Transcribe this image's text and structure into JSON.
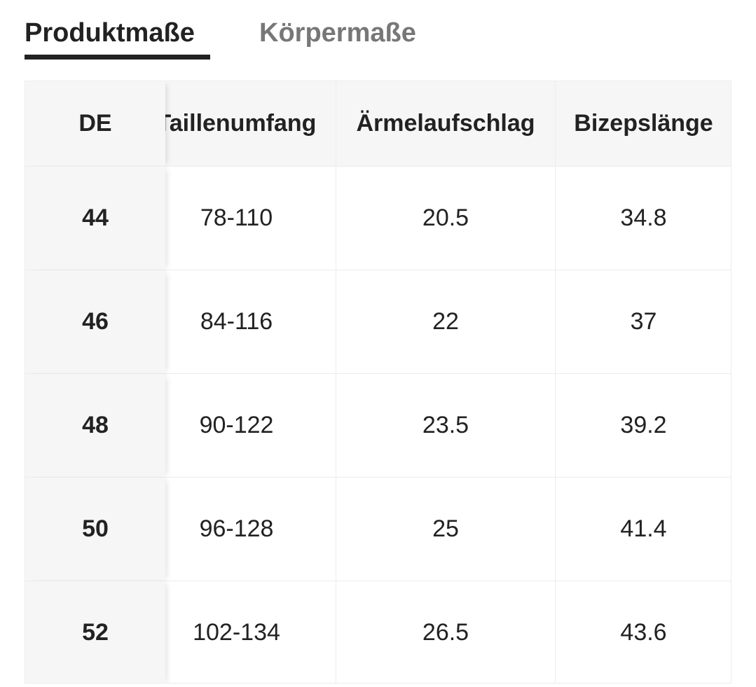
{
  "tabs": [
    "Produktmaße",
    "Körpermaße"
  ],
  "table": {
    "header": [
      "DE",
      "Taillenumfang",
      "Ärmelaufschlag",
      "Bizepslänge"
    ],
    "rows": [
      [
        "44",
        "78-110",
        "20.5",
        "34.8"
      ],
      [
        "46",
        "84-116",
        "22",
        "37"
      ],
      [
        "48",
        "90-122",
        "23.5",
        "39.2"
      ],
      [
        "50",
        "96-128",
        "25",
        "41.4"
      ],
      [
        "52",
        "102-134",
        "26.5",
        "43.6"
      ]
    ]
  }
}
